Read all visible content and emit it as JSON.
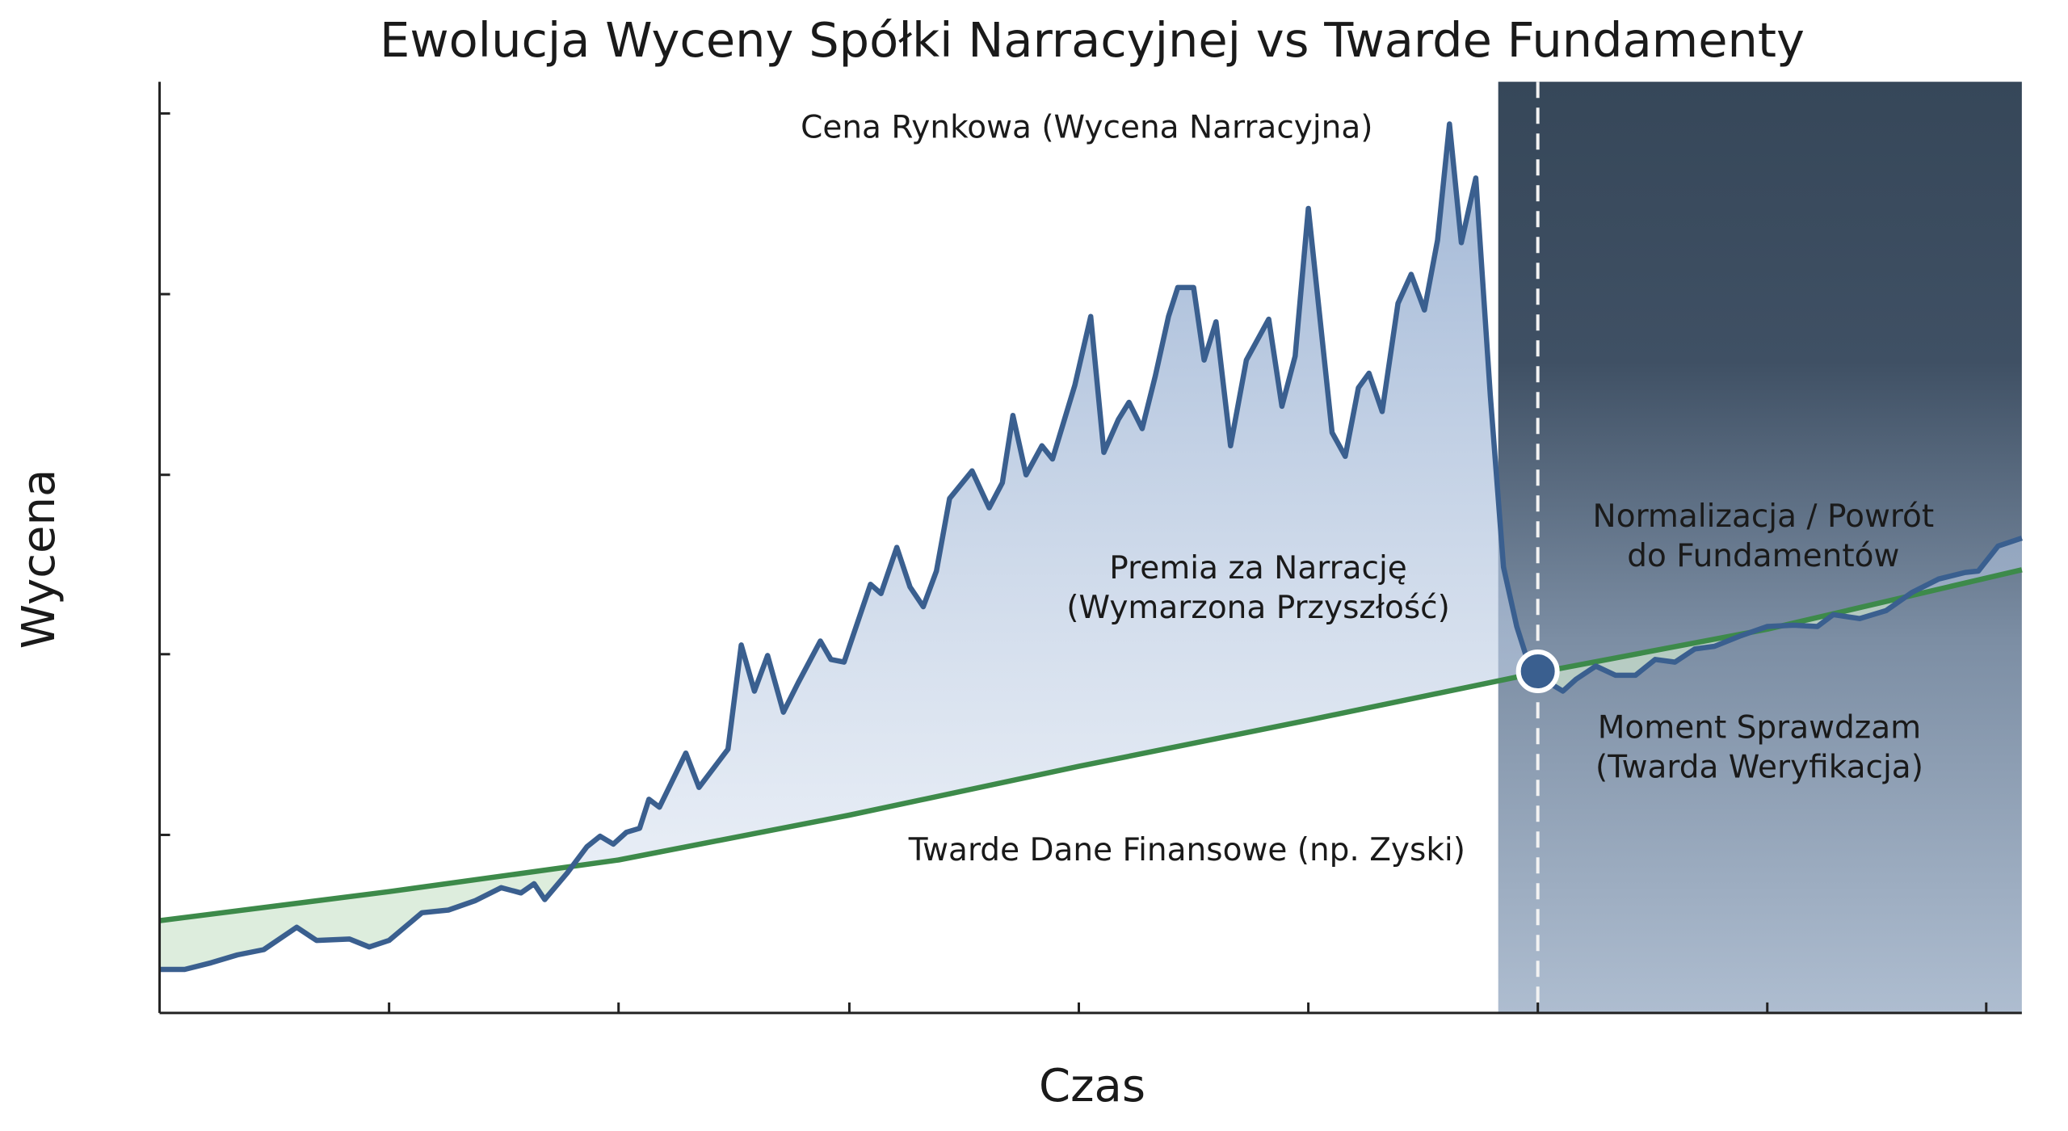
{
  "chart_data": {
    "type": "line",
    "title": "Ewolucja Wyceny Spółki Narracyjnej vs Twarde Fundamenty",
    "x_label": "Czas",
    "y_label": "Wycena",
    "xlim": [
      0,
      1412
    ],
    "ylim": [
      0,
      706
    ],
    "xticks": [
      174,
      348,
      523,
      697,
      871,
      1045,
      1219,
      1385
    ],
    "yticks": [
      135,
      272,
      408,
      545,
      682
    ],
    "series": [
      {
        "name": "Cena Rynkowa (Wycena Narracyjna)",
        "color": "#3a5f8f",
        "x": [
          0,
          19,
          39,
          59,
          79,
          104,
          119,
          144,
          159,
          174,
          199,
          219,
          239,
          259,
          274,
          284,
          292,
          309,
          324,
          334,
          344,
          354,
          364,
          371,
          379,
          399,
          409,
          431,
          441,
          451,
          461,
          473,
          484,
          501,
          509,
          519,
          539,
          547,
          559,
          569,
          579,
          589,
          599,
          616,
          629,
          639,
          647,
          657,
          669,
          677,
          694,
          706,
          716,
          727,
          735,
          745,
          755,
          765,
          772,
          784,
          792,
          801,
          812,
          824,
          841,
          851,
          861,
          871,
          889,
          899,
          909,
          917,
          927,
          939,
          949,
          959,
          969,
          978,
          987,
          998,
          1009,
          1019,
          1029,
          1037,
          1045,
          1054,
          1064,
          1074,
          1089,
          1104,
          1119,
          1134,
          1149,
          1164,
          1179,
          1199,
          1219,
          1239,
          1257,
          1269,
          1289,
          1309,
          1329,
          1349,
          1369,
          1379,
          1394,
          1412
        ],
        "values": [
          33,
          33,
          38,
          44,
          48,
          65,
          55,
          56,
          50,
          55,
          76,
          78,
          85,
          95,
          91,
          98,
          86,
          106,
          126,
          134,
          128,
          137,
          140,
          162,
          156,
          197,
          171,
          200,
          279,
          244,
          271,
          228,
          250,
          282,
          268,
          266,
          325,
          318,
          353,
          323,
          308,
          335,
          390,
          411,
          383,
          402,
          453,
          408,
          430,
          420,
          476,
          528,
          425,
          450,
          463,
          443,
          483,
          528,
          550,
          550,
          495,
          524,
          430,
          495,
          526,
          460,
          498,
          610,
          440,
          422,
          474,
          485,
          456,
          538,
          560,
          533,
          586,
          674,
          584,
          633,
          468,
          338,
          293,
          268,
          258,
          250,
          244,
          253,
          263,
          256,
          256,
          268,
          266,
          276,
          278,
          286,
          293,
          294,
          293,
          302,
          299,
          305,
          319,
          329,
          334,
          335,
          354,
          360
        ]
      },
      {
        "name": "Twarde Dane Finansowe (np. Zyski)",
        "color": "#3d8a4a",
        "x": [
          0,
          174,
          348,
          523,
          697,
          871,
          1045,
          1219,
          1412
        ],
        "values": [
          70,
          92,
          116,
          150,
          187,
          222,
          258,
          291,
          336
        ]
      }
    ],
    "checkpoint": {
      "x": 1045,
      "y": 259
    },
    "highlight_x": [
      1015,
      1412
    ],
    "annotations": [
      {
        "lines": [
          "Premia za Narrację",
          "(Wymarzona Przyszłość)"
        ]
      },
      {
        "lines": [
          "Normalizacja / Powrót",
          "do Fundamentów"
        ]
      },
      {
        "lines": [
          "Moment Sprawdzam",
          "(Twarda Weryfikacja)"
        ]
      }
    ]
  }
}
